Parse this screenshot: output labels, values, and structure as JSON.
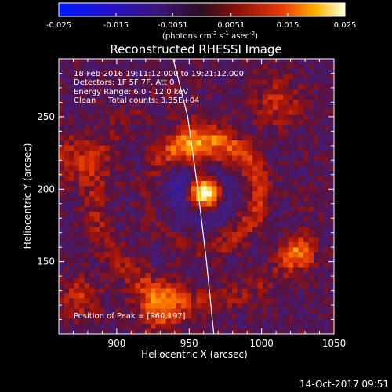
{
  "chart_data": {
    "type": "heatmap",
    "title": "Reconstructed RHESSI Image",
    "xlabel": "Heliocentric X (arcsec)",
    "ylabel": "Heliocentric Y (arcsec)",
    "xlim": [
      860,
      1050
    ],
    "ylim": [
      100,
      290
    ],
    "xticks": [
      900,
      950,
      1000,
      1050
    ],
    "yticks": [
      150,
      200,
      250
    ],
    "colorbar": {
      "label": "(photons cm-2 s-1 asec-2)",
      "range": [
        -0.025,
        0.025
      ],
      "ticks": [
        "-0.025",
        "-0.015",
        "-0.0051",
        "0.0051",
        "0.015",
        "0.025"
      ]
    },
    "annotations": [
      "18-Feb-2016 19:11:12.000 to 19:21:12.000",
      "Detectors: 1F 5F 7F, Att 0",
      "Energy Range: 6.0 - 12.0 keV",
      "Clean     Total counts: 3.35E+04"
    ],
    "peak_label": "Position of Peak = [960,197]",
    "peak": [
      960,
      197
    ],
    "features": [
      {
        "x": 960,
        "y": 197,
        "amp": 0.025,
        "sigma": 7
      },
      {
        "x": 953,
        "y": 225,
        "amp": 0.012,
        "sigma": 14
      },
      {
        "x": 1025,
        "y": 155,
        "amp": 0.013,
        "sigma": 8
      },
      {
        "x": 930,
        "y": 118,
        "amp": 0.013,
        "sigma": 11
      },
      {
        "x": 875,
        "y": 125,
        "amp": 0.009,
        "sigma": 9
      },
      {
        "x": 872,
        "y": 220,
        "amp": 0.008,
        "sigma": 12
      },
      {
        "x": 1010,
        "y": 260,
        "amp": 0.008,
        "sigma": 12
      },
      {
        "x": 945,
        "y": 205,
        "amp": -0.008,
        "sigma": 10
      }
    ],
    "limb": [
      [
        939,
        290
      ],
      [
        949,
        250
      ],
      [
        956,
        200
      ],
      [
        962,
        150
      ],
      [
        966,
        110
      ],
      [
        967,
        100
      ]
    ]
  },
  "timestamp": "14-Oct-2017 09:51",
  "colors": {
    "background": "#000000",
    "text": "#ffffff",
    "limb": "#ffffff"
  }
}
